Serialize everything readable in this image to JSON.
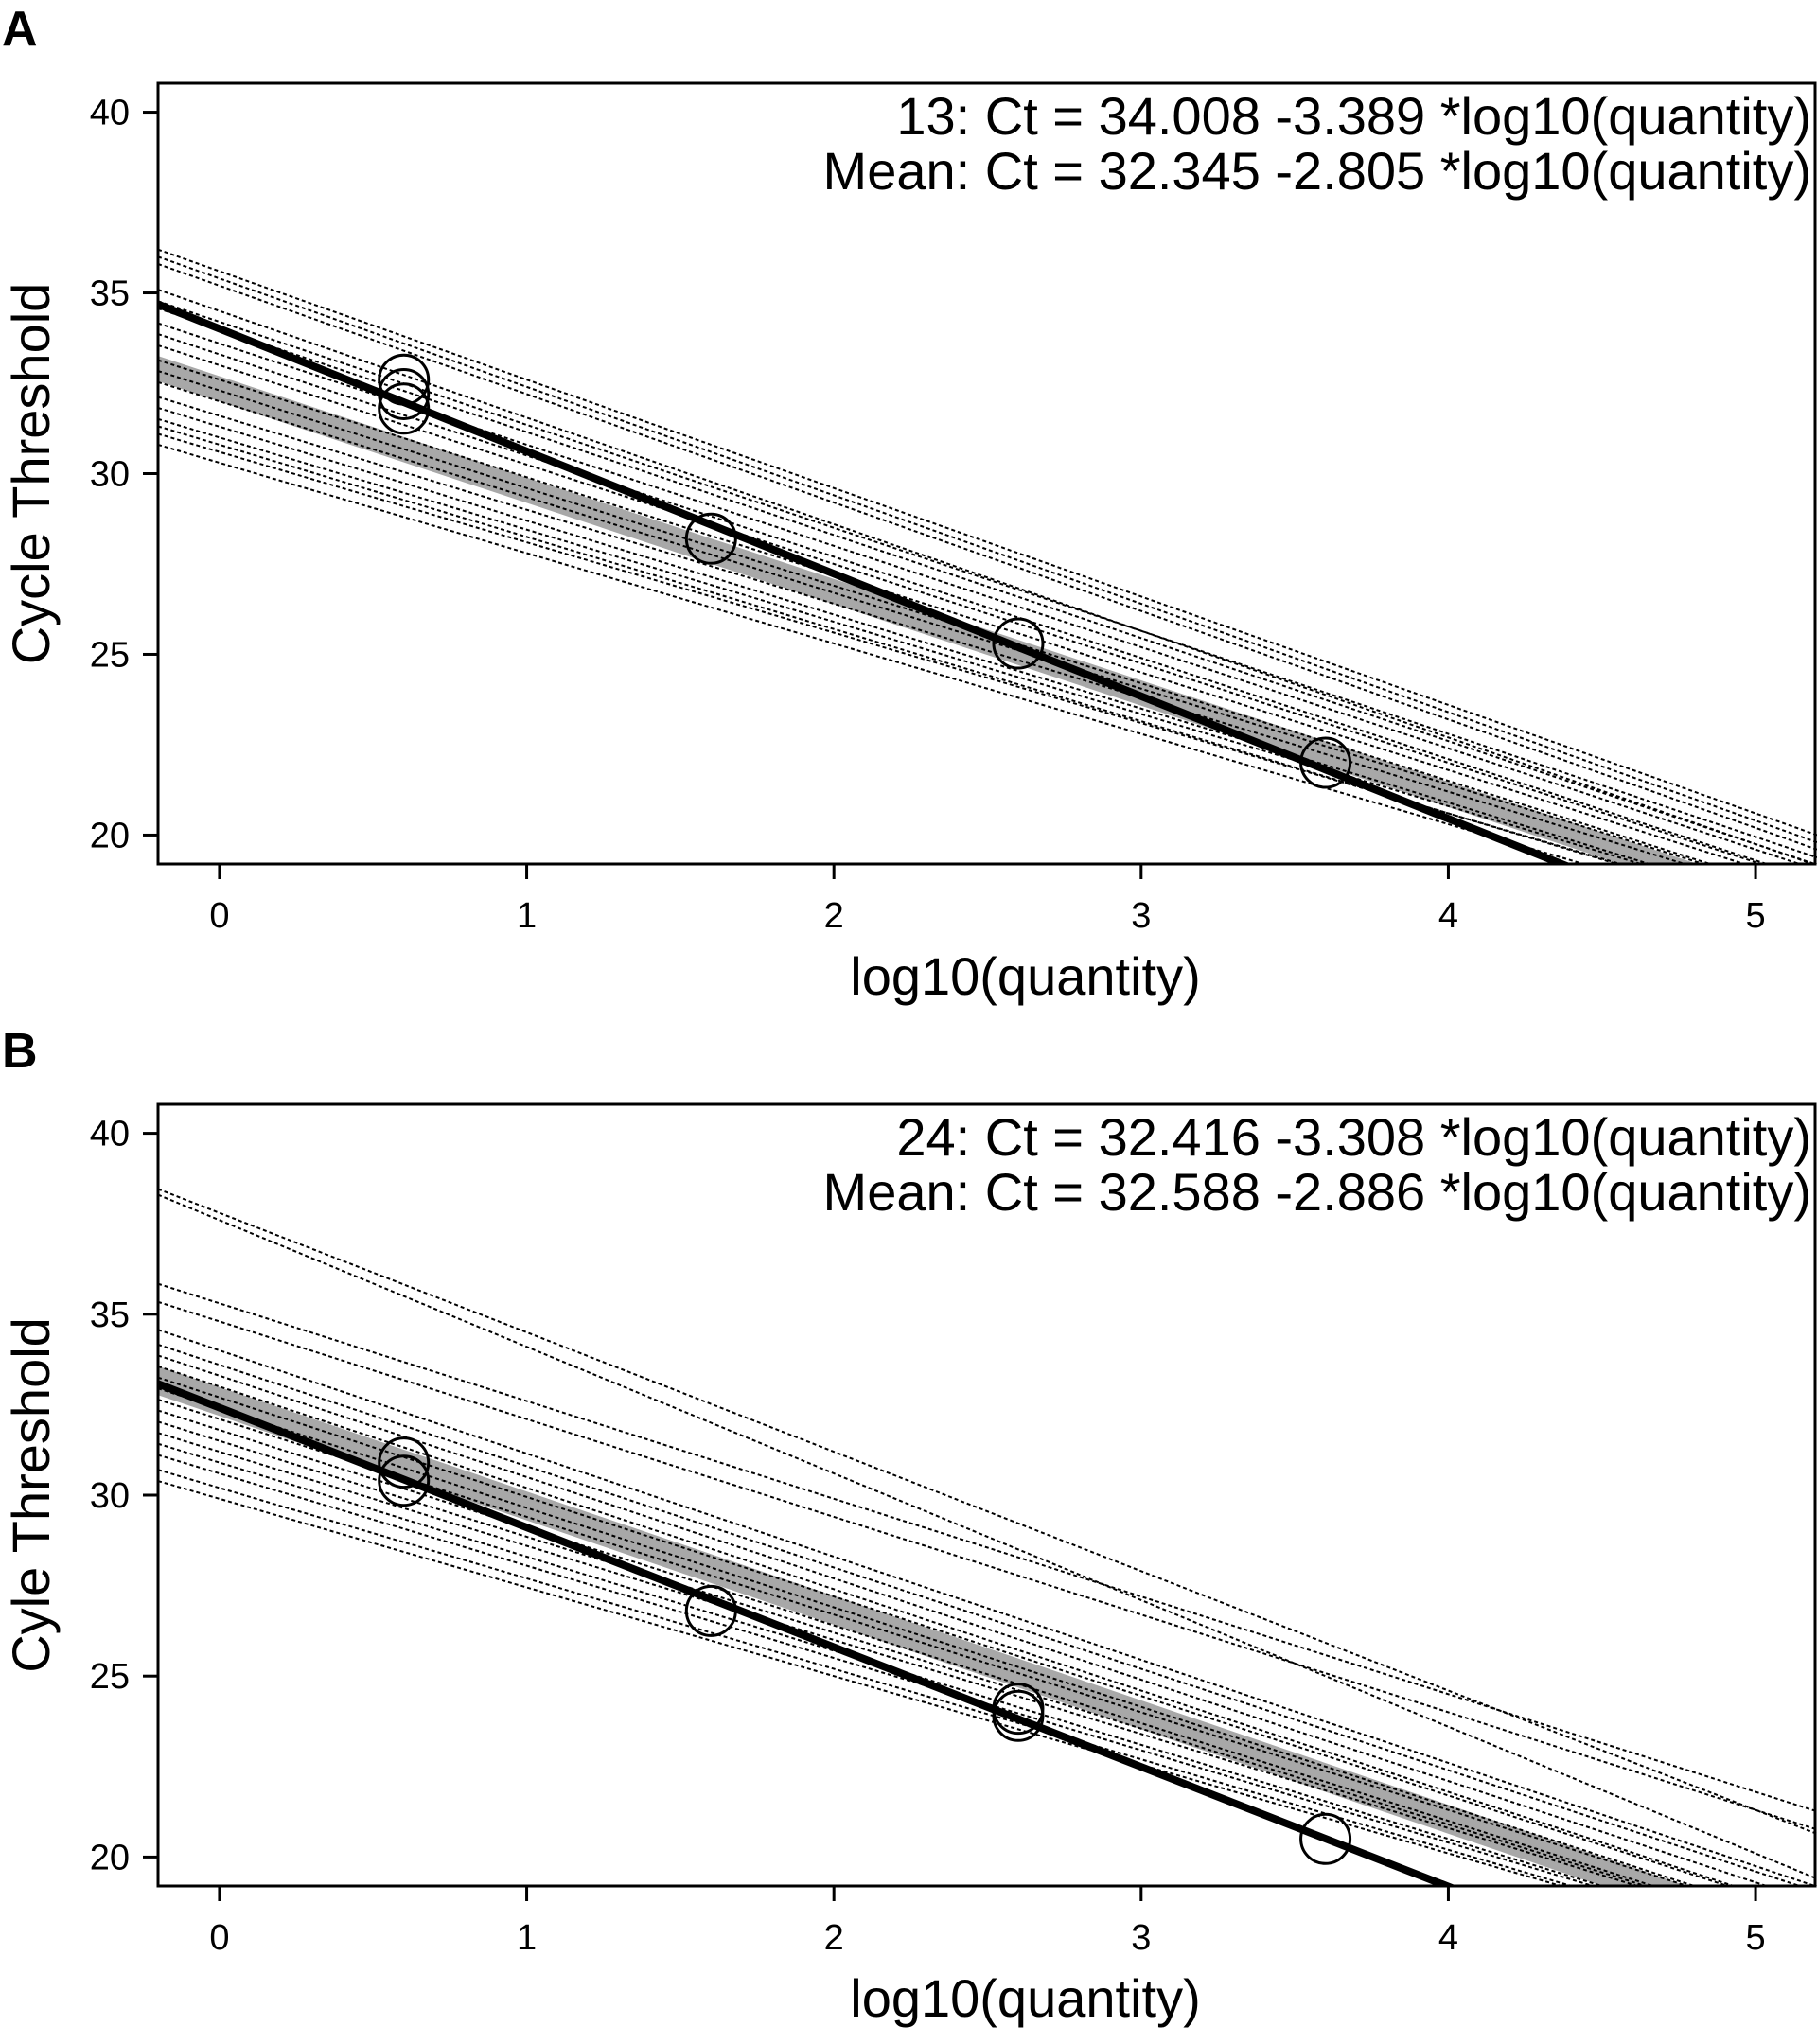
{
  "chart_data": [
    {
      "type": "line",
      "panel_label": "A",
      "xlabel": "log10(quantity)",
      "ylabel": "Cycle Threshold",
      "xlim": [
        -0.2,
        5.2
      ],
      "ylim": [
        19.2,
        40.8
      ],
      "xticks": [
        0,
        1,
        2,
        3,
        4,
        5
      ],
      "yticks": [
        20,
        25,
        30,
        35,
        40
      ],
      "annotations": [
        "13: Ct = 34.008 -3.389 *log10(quantity)",
        "Mean: Ct = 32.345 -2.805 *log10(quantity)"
      ],
      "highlighted_fit": {
        "intercept": 34.008,
        "slope": -3.389
      },
      "mean_fit": {
        "intercept": 32.345,
        "slope": -2.805,
        "band_halfwidth": 0.35
      },
      "individual_fits": [
        {
          "intercept": 35.6,
          "slope": -3.0
        },
        {
          "intercept": 35.4,
          "slope": -3.0
        },
        {
          "intercept": 35.2,
          "slope": -3.0
        },
        {
          "intercept": 34.5,
          "slope": -2.95
        },
        {
          "intercept": 34.2,
          "slope": -2.85
        },
        {
          "intercept": 34.0,
          "slope": -2.85
        },
        {
          "intercept": 33.6,
          "slope": -2.8
        },
        {
          "intercept": 33.3,
          "slope": -2.8
        },
        {
          "intercept": 33.0,
          "slope": -2.75
        },
        {
          "intercept": 32.6,
          "slope": -2.7
        },
        {
          "intercept": 32.3,
          "slope": -2.7
        },
        {
          "intercept": 32.0,
          "slope": -2.65
        },
        {
          "intercept": 31.6,
          "slope": -2.6
        },
        {
          "intercept": 31.3,
          "slope": -2.6
        },
        {
          "intercept": 31.0,
          "slope": -2.55
        },
        {
          "intercept": 30.8,
          "slope": -2.55
        },
        {
          "intercept": 30.6,
          "slope": -2.5
        },
        {
          "intercept": 30.3,
          "slope": -2.5
        }
      ],
      "points": [
        {
          "x": 0.6,
          "y": 32.6
        },
        {
          "x": 0.6,
          "y": 32.2
        },
        {
          "x": 0.6,
          "y": 31.8
        },
        {
          "x": 1.6,
          "y": 28.2
        },
        {
          "x": 2.6,
          "y": 25.3
        },
        {
          "x": 3.6,
          "y": 22.0
        }
      ]
    },
    {
      "type": "line",
      "panel_label": "B",
      "xlabel": "log10(quantity)",
      "ylabel": "Cyle Threshold",
      "xlim": [
        -0.2,
        5.2
      ],
      "ylim": [
        19.2,
        40.8
      ],
      "xticks": [
        0,
        1,
        2,
        3,
        4,
        5
      ],
      "yticks": [
        20,
        25,
        30,
        35,
        40
      ],
      "annotations": [
        "24: Ct = 32.416 -3.308 *log10(quantity)",
        "Mean: Ct = 32.588 -2.886 *log10(quantity)"
      ],
      "highlighted_fit": {
        "intercept": 32.416,
        "slope": -3.308
      },
      "mean_fit": {
        "intercept": 32.588,
        "slope": -2.886,
        "band_halfwidth": 0.4
      },
      "individual_fits": [
        {
          "intercept": 37.8,
          "slope": -3.3
        },
        {
          "intercept": 37.6,
          "slope": -3.5
        },
        {
          "intercept": 35.3,
          "slope": -2.7
        },
        {
          "intercept": 34.8,
          "slope": -2.7
        },
        {
          "intercept": 34.0,
          "slope": -2.85
        },
        {
          "intercept": 33.6,
          "slope": -2.8
        },
        {
          "intercept": 33.3,
          "slope": -2.8
        },
        {
          "intercept": 33.0,
          "slope": -2.8
        },
        {
          "intercept": 32.7,
          "slope": -2.75
        },
        {
          "intercept": 32.4,
          "slope": -2.75
        },
        {
          "intercept": 32.1,
          "slope": -2.7
        },
        {
          "intercept": 31.8,
          "slope": -2.7
        },
        {
          "intercept": 31.5,
          "slope": -2.65
        },
        {
          "intercept": 31.2,
          "slope": -2.6
        },
        {
          "intercept": 30.9,
          "slope": -2.6
        },
        {
          "intercept": 30.6,
          "slope": -2.55
        },
        {
          "intercept": 30.2,
          "slope": -2.5
        },
        {
          "intercept": 29.9,
          "slope": -2.45
        }
      ],
      "points": [
        {
          "x": 0.6,
          "y": 30.9
        },
        {
          "x": 0.6,
          "y": 30.4
        },
        {
          "x": 1.6,
          "y": 26.8
        },
        {
          "x": 2.6,
          "y": 24.1
        },
        {
          "x": 2.6,
          "y": 23.9
        },
        {
          "x": 3.6,
          "y": 20.5
        }
      ]
    }
  ]
}
